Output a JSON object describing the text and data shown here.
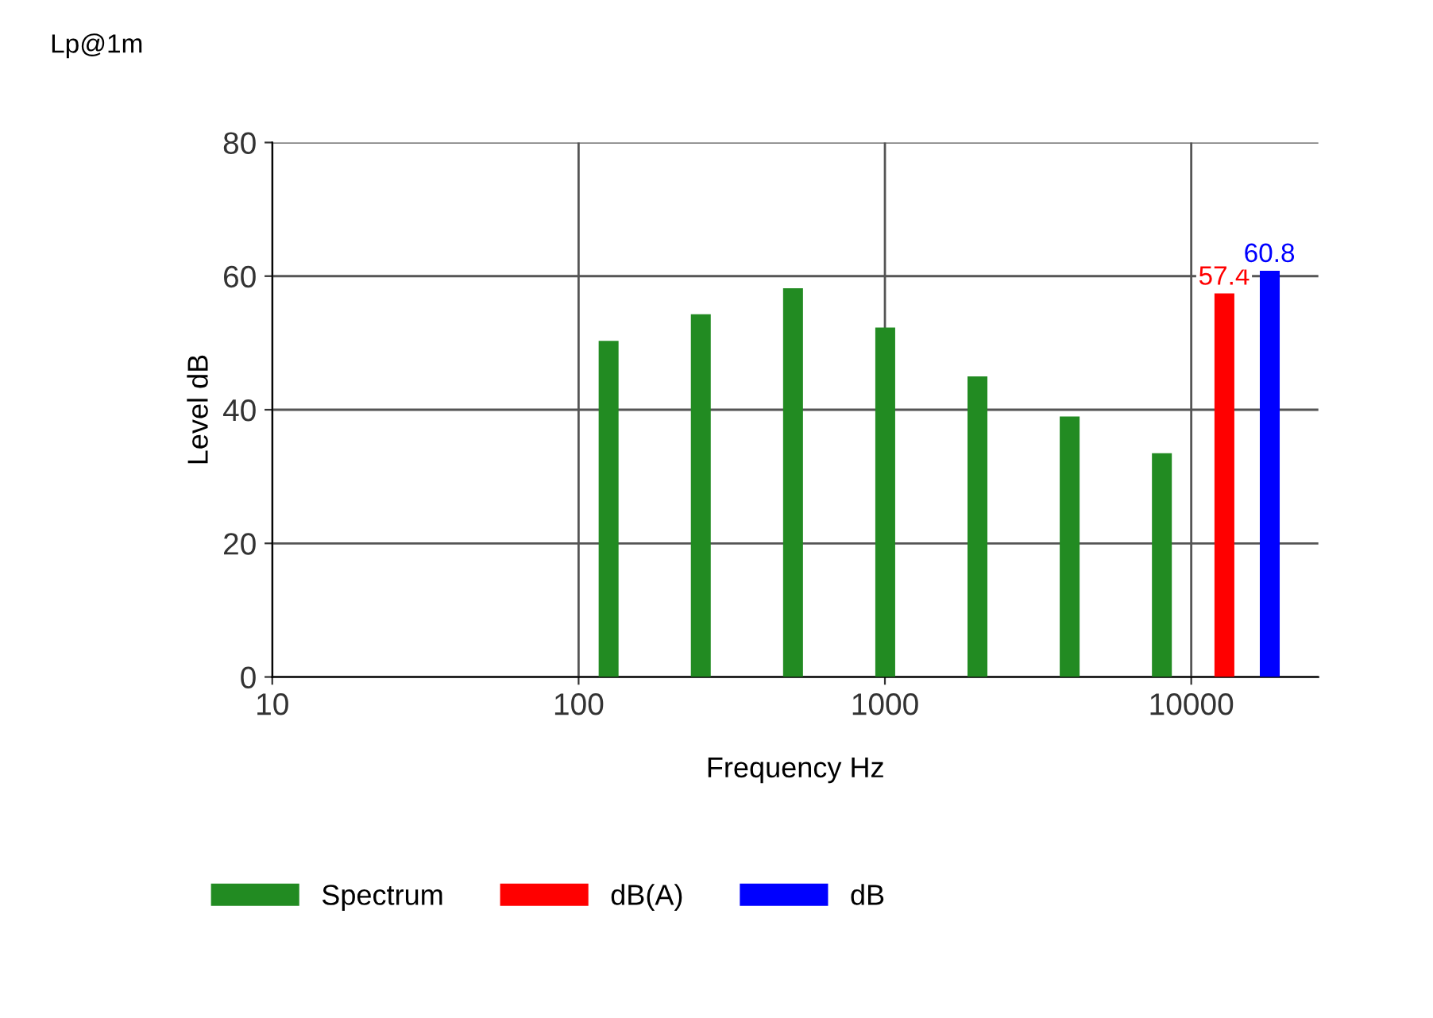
{
  "chart_data": {
    "type": "bar",
    "xlabel": "Frequency Hz",
    "ylabel": "Level dB",
    "annotations": [
      "Lp@1m"
    ],
    "log": "x",
    "xlim": [
      10,
      26000
    ],
    "xticks": [
      10,
      100,
      1000,
      10000
    ],
    "ylim": [
      0,
      80
    ],
    "yticks": [
      0,
      20,
      40,
      60,
      80
    ],
    "grid": true,
    "legend": "bottom",
    "series": [
      {
        "name": "Spectrum",
        "color": "#228b22",
        "x": [
          125,
          250,
          500,
          1000,
          2000,
          4000,
          8000
        ],
        "values": [
          50.3,
          54.3,
          58.2,
          52.3,
          45,
          39,
          33.5
        ]
      },
      {
        "name": "dB(A)",
        "color": "#ff0000",
        "x": [
          12800
        ],
        "values": [
          57.4
        ],
        "value_labels": [
          "57.4"
        ]
      },
      {
        "name": "dB",
        "color": "#0000ff",
        "x": [
          18000
        ],
        "values": [
          60.8
        ],
        "value_labels": [
          "60.8"
        ]
      }
    ]
  }
}
